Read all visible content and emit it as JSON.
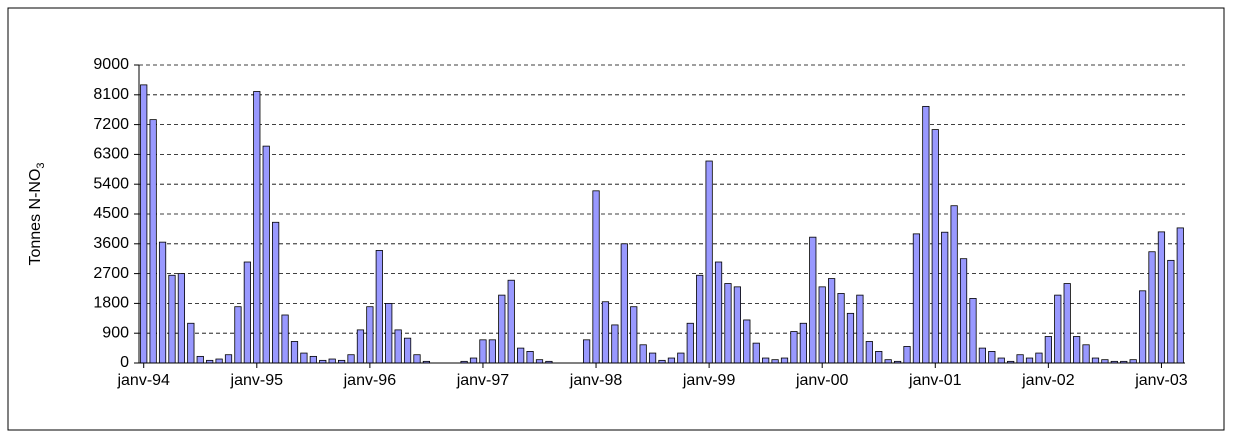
{
  "chart_data": {
    "type": "bar",
    "y_label": "Tonnes N-NO",
    "y_label_subscript": "3",
    "categories": [
      "janv-94",
      null,
      null,
      null,
      null,
      null,
      null,
      null,
      null,
      null,
      null,
      null,
      "janv-95",
      null,
      null,
      null,
      null,
      null,
      null,
      null,
      null,
      null,
      null,
      null,
      "janv-96",
      null,
      null,
      null,
      null,
      null,
      null,
      null,
      null,
      null,
      null,
      null,
      "janv-97",
      null,
      null,
      null,
      null,
      null,
      null,
      null,
      null,
      null,
      null,
      null,
      "janv-98",
      null,
      null,
      null,
      null,
      null,
      null,
      null,
      null,
      null,
      null,
      null,
      "janv-99",
      null,
      null,
      null,
      null,
      null,
      null,
      null,
      null,
      null,
      null,
      null,
      "janv-00",
      null,
      null,
      null,
      null,
      null,
      null,
      null,
      null,
      null,
      null,
      null,
      "janv-01",
      null,
      null,
      null,
      null,
      null,
      null,
      null,
      null,
      null,
      null,
      null,
      "janv-02",
      null,
      null,
      null,
      null,
      null,
      null,
      null,
      null,
      null,
      null,
      null,
      "janv-03",
      null,
      null
    ],
    "values": [
      8400,
      7350,
      3650,
      2650,
      2700,
      1200,
      200,
      80,
      120,
      250,
      1700,
      3050,
      8200,
      6550,
      4250,
      1450,
      650,
      300,
      200,
      80,
      120,
      80,
      250,
      1000,
      1700,
      3400,
      1800,
      1000,
      750,
      250,
      50,
      0,
      0,
      0,
      50,
      150,
      700,
      700,
      2050,
      2500,
      450,
      350,
      100,
      50,
      0,
      0,
      0,
      700,
      5200,
      1850,
      1150,
      3600,
      1700,
      550,
      300,
      80,
      150,
      300,
      1200,
      2650,
      6100,
      3050,
      2400,
      2300,
      1300,
      600,
      150,
      100,
      150,
      950,
      1200,
      3800,
      2300,
      2550,
      2100,
      1500,
      2050,
      650,
      350,
      100,
      50,
      500,
      3900,
      7750,
      7050,
      3950,
      4750,
      3150,
      1950,
      450,
      350,
      150,
      50,
      250,
      150,
      300,
      800,
      2050,
      2400,
      800,
      550,
      150,
      100,
      50,
      50,
      100,
      2180,
      3360,
      3960,
      3100,
      4080
    ],
    "color": "#9999ff",
    "ylim": [
      0,
      9000
    ],
    "yticks": [
      0,
      900,
      1800,
      2700,
      3600,
      4500,
      5400,
      6300,
      7200,
      8100,
      9000
    ],
    "grid": true
  }
}
